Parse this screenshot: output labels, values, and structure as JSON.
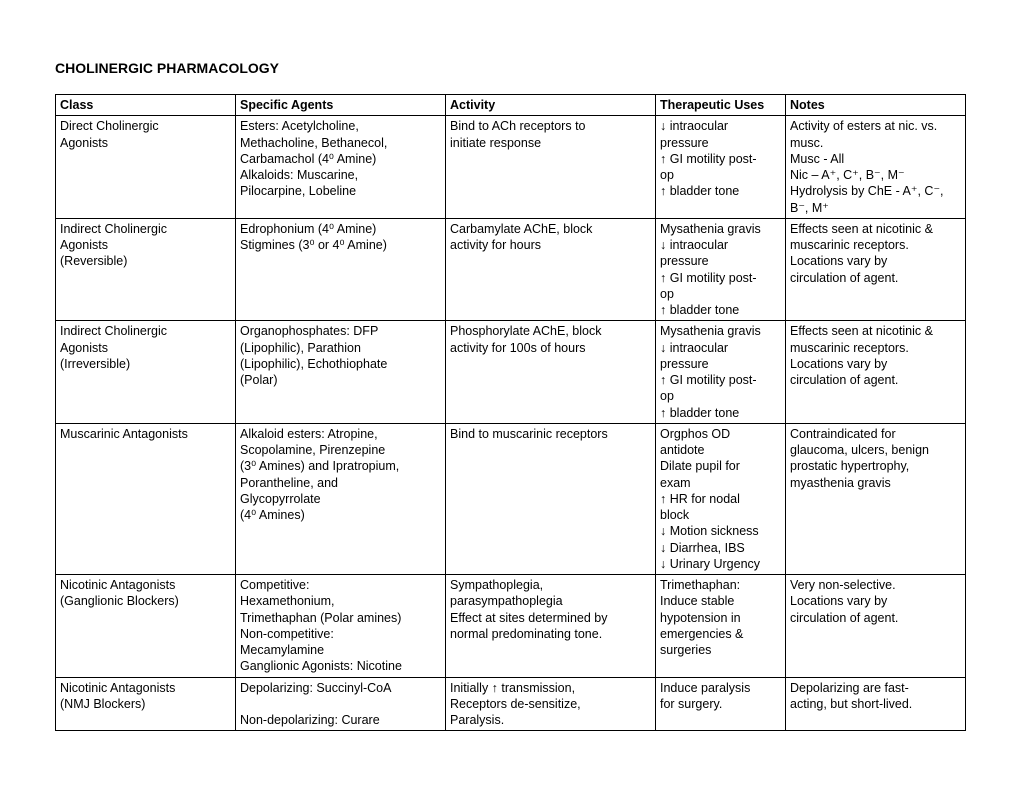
{
  "title": "CHOLINERGIC PHARMACOLOGY",
  "columns": [
    "Class",
    "Specific Agents",
    "Activity",
    "Therapeutic Uses",
    "Notes"
  ],
  "rows": [
    {
      "class": [
        "Direct Cholinergic",
        "Agonists"
      ],
      "agents": [
        "Esters:  Acetylcholine,",
        "Methacholine, Bethanecol,",
        "Carbamachol (4⁰ Amine)",
        "Alkaloids: Muscarine,",
        "Pilocarpine, Lobeline"
      ],
      "activity": [
        "Bind to ACh receptors to",
        "initiate response"
      ],
      "uses": [
        "↓ intraocular",
        "pressure",
        "↑ GI motility post-",
        "op",
        "↑ bladder tone"
      ],
      "notes": [
        "Activity of esters at nic. vs.",
        "musc.",
        "     Musc - All",
        "     Nic – A⁺, C⁺, B⁻, M⁻",
        "Hydrolysis by ChE - A⁺, C⁻,",
        "B⁻, M⁺"
      ]
    },
    {
      "class": [
        "Indirect Cholinergic",
        "Agonists",
        "(Reversible)"
      ],
      "agents": [
        "Edrophonium (4⁰ Amine)",
        "Stigmines (3⁰ or 4⁰ Amine)"
      ],
      "activity": [
        "Carbamylate AChE, block",
        "activity for hours"
      ],
      "uses": [
        "Mysathenia gravis",
        "↓ intraocular",
        "pressure",
        "↑ GI motility post-",
        "op",
        "↑ bladder tone"
      ],
      "notes": [
        "Effects seen at nicotinic &",
        "muscarinic receptors.",
        "Locations vary by",
        "circulation of agent."
      ]
    },
    {
      "class": [
        "Indirect Cholinergic",
        "Agonists",
        "(Irreversible)"
      ],
      "agents": [
        "Organophosphates: DFP",
        "(Lipophilic), Parathion",
        "(Lipophilic), Echothiophate",
        "(Polar)"
      ],
      "activity": [
        "Phosphorylate AChE, block",
        "activity for 100s of hours"
      ],
      "uses": [
        "Mysathenia gravis",
        "↓ intraocular",
        "pressure",
        "↑ GI motility post-",
        "op",
        "↑ bladder tone"
      ],
      "notes": [
        "Effects seen at nicotinic &",
        "muscarinic receptors.",
        "Locations vary by",
        "circulation of agent."
      ]
    },
    {
      "class": [
        "Muscarinic Antagonists"
      ],
      "agents": [
        "Alkaloid esters: Atropine,",
        "Scopolamine, Pirenzepine",
        "(3⁰ Amines) and Ipratropium,",
        "Porantheline, and",
        "Glycopyrrolate",
        "(4⁰ Amines)"
      ],
      "activity": [
        "Bind to muscarinic receptors"
      ],
      "uses": [
        "Orgphos OD",
        "antidote",
        "Dilate pupil for",
        "exam",
        "↑ HR for nodal",
        "block",
        "↓ Motion sickness",
        "↓ Diarrhea, IBS",
        "↓ Urinary Urgency"
      ],
      "notes": [
        "Contraindicated for",
        "glaucoma, ulcers, benign",
        "prostatic hypertrophy,",
        "myasthenia gravis"
      ]
    },
    {
      "class": [
        "Nicotinic Antagonists",
        "(Ganglionic Blockers)"
      ],
      "agents": [
        "Competitive:",
        "Hexamethonium,",
        "Trimethaphan (Polar amines)",
        "Non-competitive:",
        "Mecamylamine",
        "Ganglionic Agonists: Nicotine"
      ],
      "activity": [
        "Sympathoplegia,",
        "parasympathoplegia",
        "Effect at sites determined by",
        "normal predominating tone."
      ],
      "uses": [
        "Trimethaphan:",
        "Induce stable",
        "hypotension in",
        "emergencies &",
        "surgeries"
      ],
      "notes": [
        "Very non-selective.",
        "Locations vary by",
        "circulation of agent."
      ]
    },
    {
      "class": [
        "Nicotinic Antagonists",
        "(NMJ Blockers)"
      ],
      "agents": [
        "Depolarizing: Succinyl-CoA",
        "",
        "Non-depolarizing: Curare"
      ],
      "activity": [
        "Initially ↑ transmission,",
        "Receptors de-sensitize,",
        "Paralysis."
      ],
      "uses": [
        "Induce paralysis",
        "for surgery."
      ],
      "notes": [
        "Depolarizing are fast-",
        "acting, but short-lived."
      ]
    }
  ]
}
